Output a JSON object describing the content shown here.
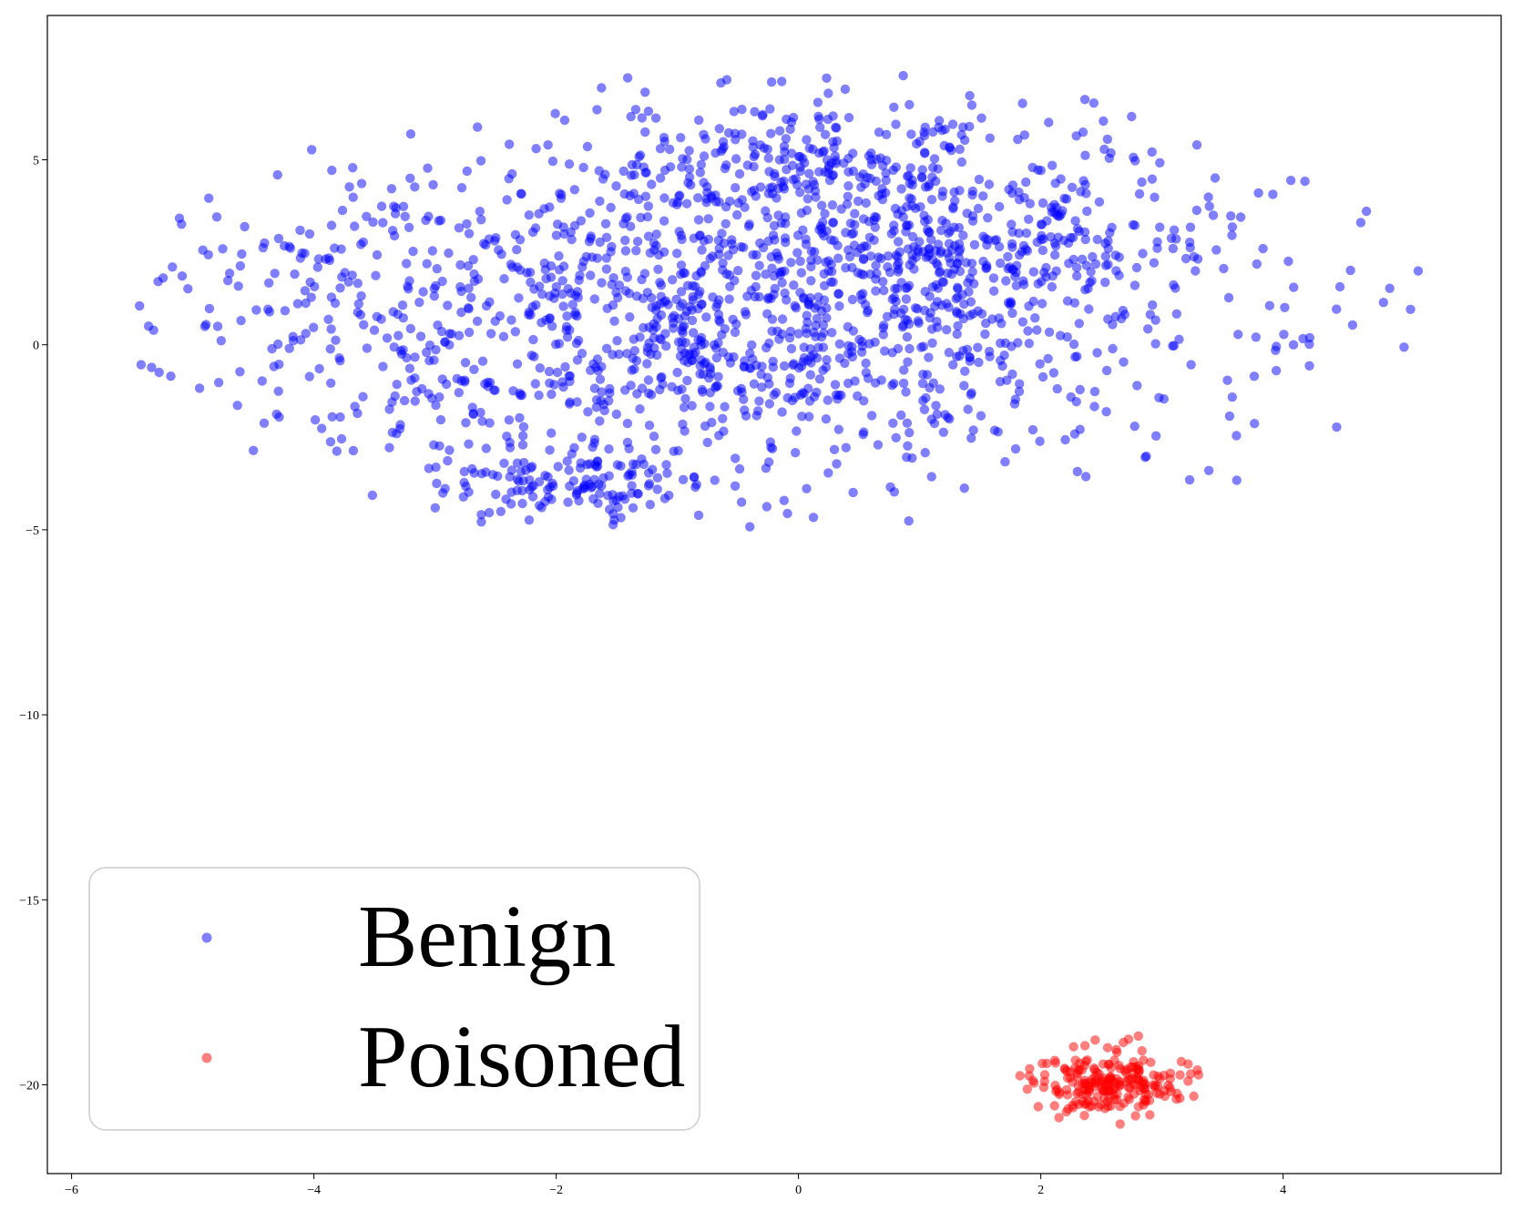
{
  "chart_data": {
    "type": "scatter",
    "title": "",
    "xlabel": "",
    "ylabel": "",
    "xlim": [
      -6.2,
      5.8
    ],
    "ylim": [
      -22.4,
      8.9
    ],
    "x_ticks": [
      -6,
      -4,
      -2,
      0,
      2,
      4
    ],
    "y_ticks": [
      5,
      0,
      -5,
      -10,
      -15,
      -20
    ],
    "x_tick_labels": [
      "−6",
      "−4",
      "−2",
      "0",
      "2",
      "4"
    ],
    "y_tick_labels": [
      "5",
      "0",
      "−5",
      "−10",
      "−15",
      "−20"
    ],
    "grid": false,
    "legend": {
      "position": "lower-left"
    },
    "series": [
      {
        "name": "Benign",
        "color": "#0000ff",
        "alpha": 0.5,
        "n_points": 2000,
        "distribution": "ellipse cloud, x approx -5.6 to 5.3, y approx -5.5 to 7.4, center near (0, 1.5)"
      },
      {
        "name": "Poisoned",
        "color": "#ff0000",
        "alpha": 0.5,
        "n_points": 220,
        "distribution": "compact cluster, x approx 1.8 to 3.3, y approx -21.1 to -18.6, center near (2.55, -20.0)"
      }
    ]
  }
}
